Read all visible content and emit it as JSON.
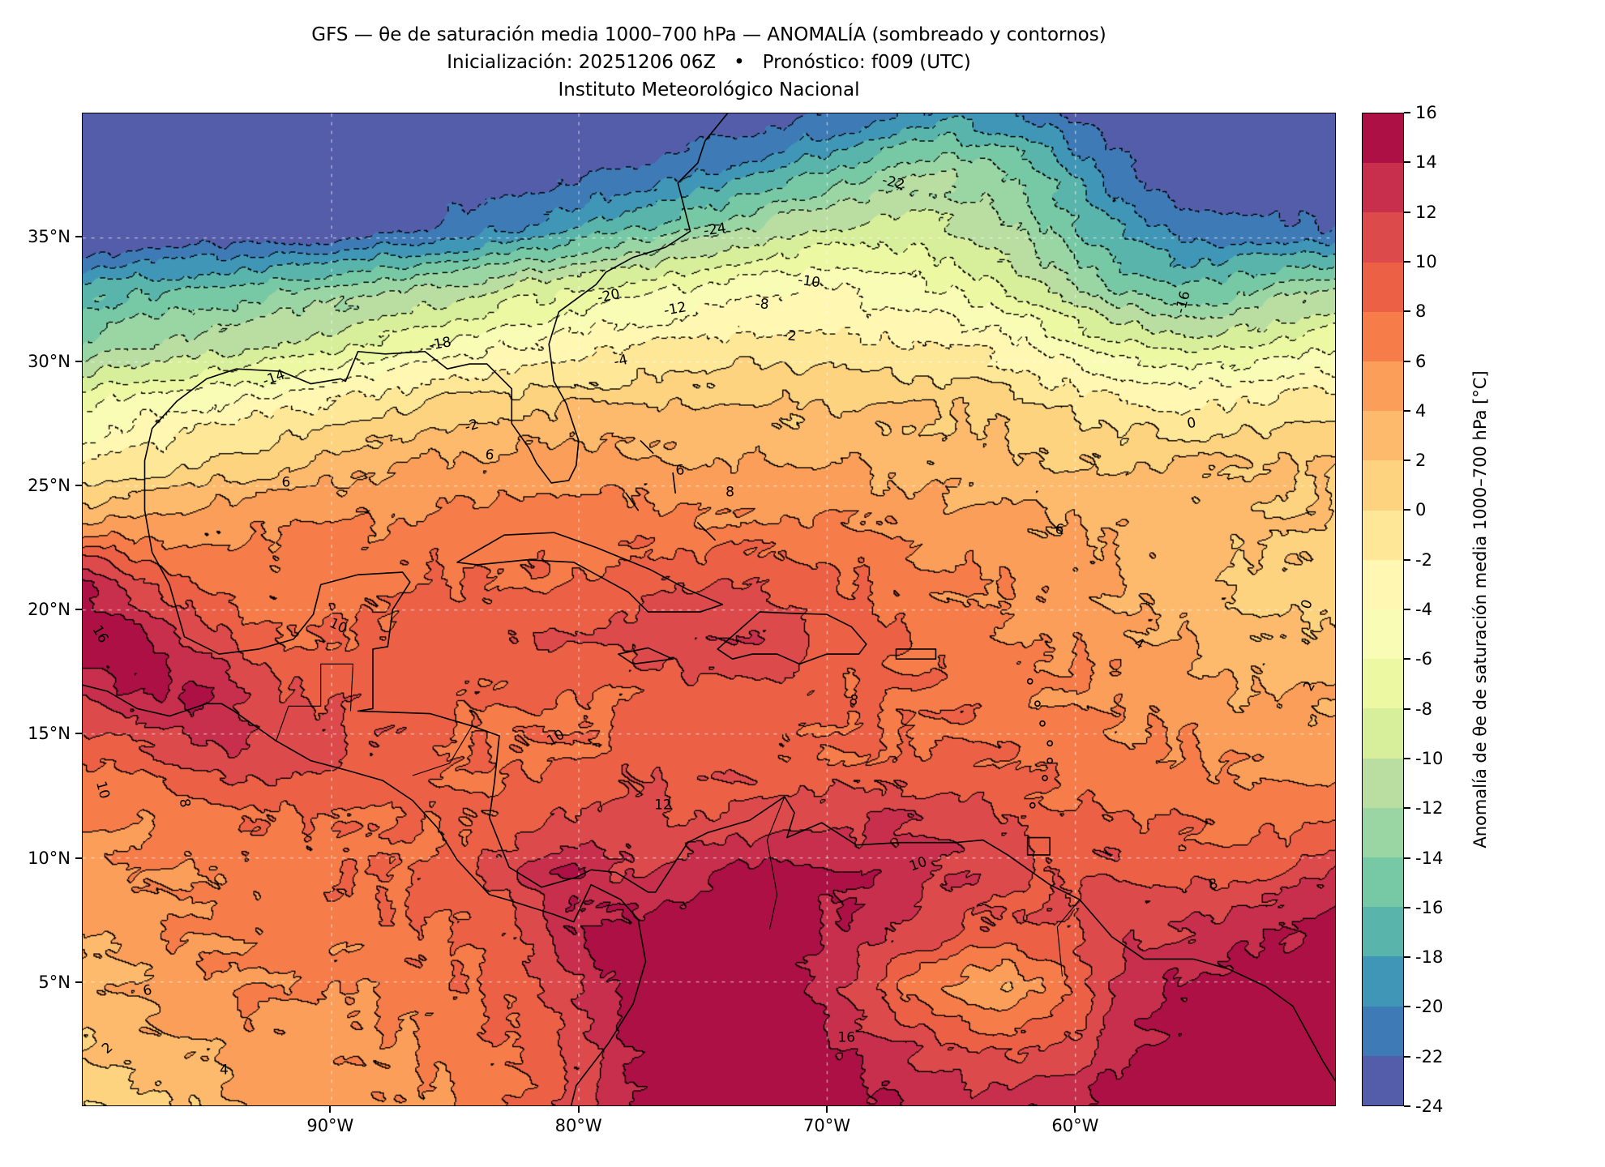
{
  "title": {
    "line1": "GFS — θe de saturación media 1000–700 hPa — ANOMALÍA (sombreado y contornos)",
    "line2": "Inicialización: 20251206 06Z   •   Pronóstico: f009 (UTC)",
    "line3": "Instituto Meteorológico Nacional"
  },
  "chart_data": {
    "type": "heatmap",
    "subtype": "filled-contour-anomaly-map",
    "x_ticks": [
      "90°W",
      "80°W",
      "70°W",
      "60°W"
    ],
    "x_tick_lons": [
      -90,
      -80,
      -70,
      -60
    ],
    "y_ticks": [
      "35°N",
      "30°N",
      "25°N",
      "20°N",
      "15°N",
      "10°N",
      "5°N"
    ],
    "y_tick_lats": [
      35,
      30,
      25,
      20,
      15,
      10,
      5
    ],
    "lon_range": [
      -100,
      -49.5
    ],
    "lat_range": [
      0,
      40
    ],
    "grid_on": true,
    "levels_min": -24,
    "levels_max": 16,
    "level_step": 2,
    "colorbar": {
      "label": "Anomalía de θe de saturación media 1000–700 hPa [°C]",
      "ticks": [
        "16",
        "14",
        "12",
        "10",
        "8",
        "6",
        "4",
        "2",
        "0",
        "-2",
        "-4",
        "-6",
        "-8",
        "-10",
        "-12",
        "-14",
        "-16",
        "-18",
        "-20",
        "-22",
        "-24"
      ],
      "tick_values": [
        16,
        14,
        12,
        10,
        8,
        6,
        4,
        2,
        0,
        -2,
        -4,
        -6,
        -8,
        -10,
        -12,
        -14,
        -16,
        -18,
        -20,
        -22,
        -24
      ],
      "colors": [
        "#535DA9",
        "#3D7AB6",
        "#3F96B7",
        "#59B4AB",
        "#77C9A5",
        "#9AD6A4",
        "#BADEA1",
        "#D7EF9B",
        "#ECF8A2",
        "#F9FCB5",
        "#FFF7B2",
        "#FEE898",
        "#FED380",
        "#FDBA6C",
        "#FB9E5A",
        "#F67D4A",
        "#EC6146",
        "#DD4A4C",
        "#C72F4C",
        "#AC1045"
      ]
    },
    "grid": {
      "lats": [
        40,
        37.6,
        35.3,
        32.9,
        30.6,
        28.2,
        25.9,
        23.5,
        21.2,
        18.8,
        16.5,
        14.1,
        11.8,
        9.4,
        7.1,
        4.7,
        2.4,
        0
      ],
      "lons": [
        -100,
        -97.8,
        -95.6,
        -93.4,
        -91.2,
        -89,
        -86.8,
        -84.6,
        -82.4,
        -80.2,
        -78,
        -75.8,
        -73.6,
        -71.4,
        -69.2,
        -67,
        -64.8,
        -62.6,
        -60.4,
        -58.2,
        -56,
        -53.8,
        -51.6,
        -49.5
      ],
      "values": [
        [
          -25,
          -25,
          -25,
          -25,
          -25,
          -25,
          -25,
          -25,
          -25,
          -25,
          -25,
          -24,
          -24,
          -23,
          -22,
          -20,
          -19,
          -20,
          -22,
          -24,
          -25,
          -25,
          -25,
          -25
        ],
        [
          -25,
          -25,
          -25,
          -25,
          -25,
          -25,
          -25,
          -24,
          -24,
          -23,
          -22,
          -21,
          -19,
          -17,
          -15,
          -13,
          -12,
          -14,
          -17,
          -21,
          -24,
          -25,
          -25,
          -25
        ],
        [
          -25,
          -25,
          -24,
          -24,
          -24,
          -23,
          -22,
          -21,
          -20,
          -18,
          -16,
          -14,
          -12,
          -10,
          -9,
          -9,
          -10,
          -12,
          -15,
          -18,
          -20,
          -21,
          -21,
          -22
        ],
        [
          -17,
          -16,
          -16,
          -15,
          -14,
          -13,
          -12,
          -11,
          -9,
          -8,
          -7,
          -6,
          -5,
          -4,
          -4,
          -5,
          -6,
          -8,
          -11,
          -14,
          -16,
          -15,
          -13,
          -12
        ],
        [
          -13,
          -12,
          -11,
          -10,
          -9,
          -8,
          -6,
          -5,
          -4,
          -3,
          -2,
          -2,
          -1,
          -1,
          -1,
          -2,
          -2,
          -3,
          -5,
          -7,
          -8,
          -8,
          -7,
          -6
        ],
        [
          -6,
          -5,
          -4,
          -3,
          -2,
          -1,
          0,
          1,
          1,
          2,
          2,
          2,
          2,
          2,
          2,
          2,
          2,
          1,
          0,
          -1,
          -2,
          -2,
          -1,
          -1
        ],
        [
          -2,
          -1,
          0,
          1,
          2,
          3,
          4,
          4,
          5,
          5,
          5,
          4,
          4,
          4,
          4,
          3,
          3,
          3,
          2,
          2,
          2,
          2,
          2,
          2
        ],
        [
          4,
          5,
          5,
          6,
          6,
          6,
          6,
          7,
          7,
          7,
          7,
          6,
          6,
          6,
          6,
          6,
          5,
          5,
          4,
          4,
          3,
          3,
          2,
          2
        ],
        [
          14,
          10,
          8,
          7,
          7,
          7,
          8,
          8,
          8,
          8,
          9,
          10,
          10,
          9,
          8,
          7,
          6,
          6,
          5,
          4,
          3,
          2,
          1,
          1
        ],
        [
          16,
          15,
          12,
          9,
          8,
          8,
          9,
          9,
          10,
          10,
          11,
          12,
          12,
          11,
          9,
          8,
          7,
          6,
          6,
          5,
          4,
          3,
          2,
          2
        ],
        [
          12,
          14,
          15,
          12,
          10,
          9,
          9,
          8,
          8,
          8,
          8,
          9,
          9,
          9,
          8,
          8,
          8,
          7,
          6,
          6,
          5,
          4,
          4,
          4
        ],
        [
          8,
          9,
          11,
          12,
          11,
          10,
          9,
          8,
          8,
          8,
          9,
          9,
          9,
          8,
          8,
          8,
          8,
          8,
          7,
          6,
          6,
          6,
          5,
          5
        ],
        [
          6,
          6,
          7,
          8,
          8,
          8,
          8,
          8,
          9,
          10,
          11,
          10,
          10,
          11,
          11,
          12,
          11,
          10,
          8,
          8,
          8,
          7,
          7,
          7
        ],
        [
          5,
          6,
          6,
          7,
          7,
          8,
          8,
          9,
          12,
          14,
          12,
          13,
          15,
          15,
          14,
          13,
          12,
          11,
          10,
          10,
          9,
          9,
          10,
          12
        ],
        [
          4,
          5,
          6,
          6,
          7,
          7,
          8,
          8,
          10,
          14,
          15,
          16,
          16,
          15,
          14,
          12,
          10,
          9,
          10,
          11,
          12,
          13,
          14,
          15
        ],
        [
          3,
          4,
          5,
          6,
          6,
          6,
          7,
          8,
          9,
          12,
          15,
          16,
          16,
          15,
          12,
          8,
          5,
          4,
          7,
          12,
          14,
          15,
          16,
          16
        ],
        [
          2,
          3,
          4,
          5,
          5,
          6,
          6,
          7,
          8,
          10,
          14,
          16,
          16,
          16,
          14,
          12,
          10,
          9,
          10,
          13,
          15,
          16,
          16,
          16
        ],
        [
          0,
          1,
          2,
          4,
          5,
          5,
          6,
          6,
          8,
          10,
          14,
          16,
          17,
          17,
          15,
          14,
          13,
          13,
          14,
          15,
          16,
          17,
          17,
          17
        ]
      ]
    },
    "contour_labels": [
      {
        "text": "-24",
        "lon": -74.5,
        "lat": 35.3,
        "rot": -8
      },
      {
        "text": "-22",
        "lon": -67.3,
        "lat": 37.2,
        "rot": 14
      },
      {
        "text": "-20",
        "lon": -78.8,
        "lat": 32.6,
        "rot": -12
      },
      {
        "text": "-18",
        "lon": -85.6,
        "lat": 30.7,
        "rot": -10
      },
      {
        "text": "-16",
        "lon": -55.6,
        "lat": 32.4,
        "rot": -75
      },
      {
        "text": "-14",
        "lon": -92.3,
        "lat": 29.3,
        "rot": -20
      },
      {
        "text": "-12",
        "lon": -76.1,
        "lat": 32.1,
        "rot": -10
      },
      {
        "text": "-10",
        "lon": -70.7,
        "lat": 33.2,
        "rot": 8
      },
      {
        "text": "-8",
        "lon": -72.6,
        "lat": 32.3,
        "rot": 5
      },
      {
        "text": "-4",
        "lon": -78.3,
        "lat": 30.0,
        "rot": -12
      },
      {
        "text": "-2",
        "lon": -71.5,
        "lat": 31.0,
        "rot": 6
      },
      {
        "text": "-2",
        "lon": -84.3,
        "lat": 27.4,
        "rot": -18
      },
      {
        "text": "0",
        "lon": -55.3,
        "lat": 27.5,
        "rot": -10
      },
      {
        "text": "0",
        "lon": -50.6,
        "lat": 20.2,
        "rot": -70
      },
      {
        "text": "2",
        "lon": -50.5,
        "lat": 16.9,
        "rot": -60
      },
      {
        "text": "4",
        "lon": -57.4,
        "lat": 18.6,
        "rot": 30
      },
      {
        "text": "6",
        "lon": -83.6,
        "lat": 26.2,
        "rot": 8
      },
      {
        "text": "6",
        "lon": -75.9,
        "lat": 25.6,
        "rot": -5
      },
      {
        "text": "6",
        "lon": -60.6,
        "lat": 23.2,
        "rot": 10
      },
      {
        "text": "6",
        "lon": -91.8,
        "lat": 25.1,
        "rot": 0
      },
      {
        "text": "6",
        "lon": -97.4,
        "lat": 4.6,
        "rot": -10
      },
      {
        "text": "8",
        "lon": -73.9,
        "lat": 24.7,
        "rot": 0
      },
      {
        "text": "8",
        "lon": -68.9,
        "lat": 16.3,
        "rot": 12
      },
      {
        "text": "8",
        "lon": -95.9,
        "lat": 12.2,
        "rot": 80
      },
      {
        "text": "8",
        "lon": -54.4,
        "lat": 8.9,
        "rot": -15
      },
      {
        "text": "10",
        "lon": -89.7,
        "lat": 19.3,
        "rot": 25
      },
      {
        "text": "10",
        "lon": -80.9,
        "lat": 14.8,
        "rot": -30
      },
      {
        "text": "10",
        "lon": -99.2,
        "lat": 12.7,
        "rot": 75
      },
      {
        "text": "10",
        "lon": -66.3,
        "lat": 9.7,
        "rot": -20
      },
      {
        "text": "12",
        "lon": -76.6,
        "lat": 12.1,
        "rot": 0
      },
      {
        "text": "16",
        "lon": -99.3,
        "lat": 19.0,
        "rot": 60
      },
      {
        "text": "16",
        "lon": -69.2,
        "lat": 2.7,
        "rot": 0
      },
      {
        "text": "4",
        "lon": -94.3,
        "lat": 1.4,
        "rot": 0
      },
      {
        "text": "2",
        "lon": -99.0,
        "lat": 2.3,
        "rot": -40
      }
    ]
  }
}
